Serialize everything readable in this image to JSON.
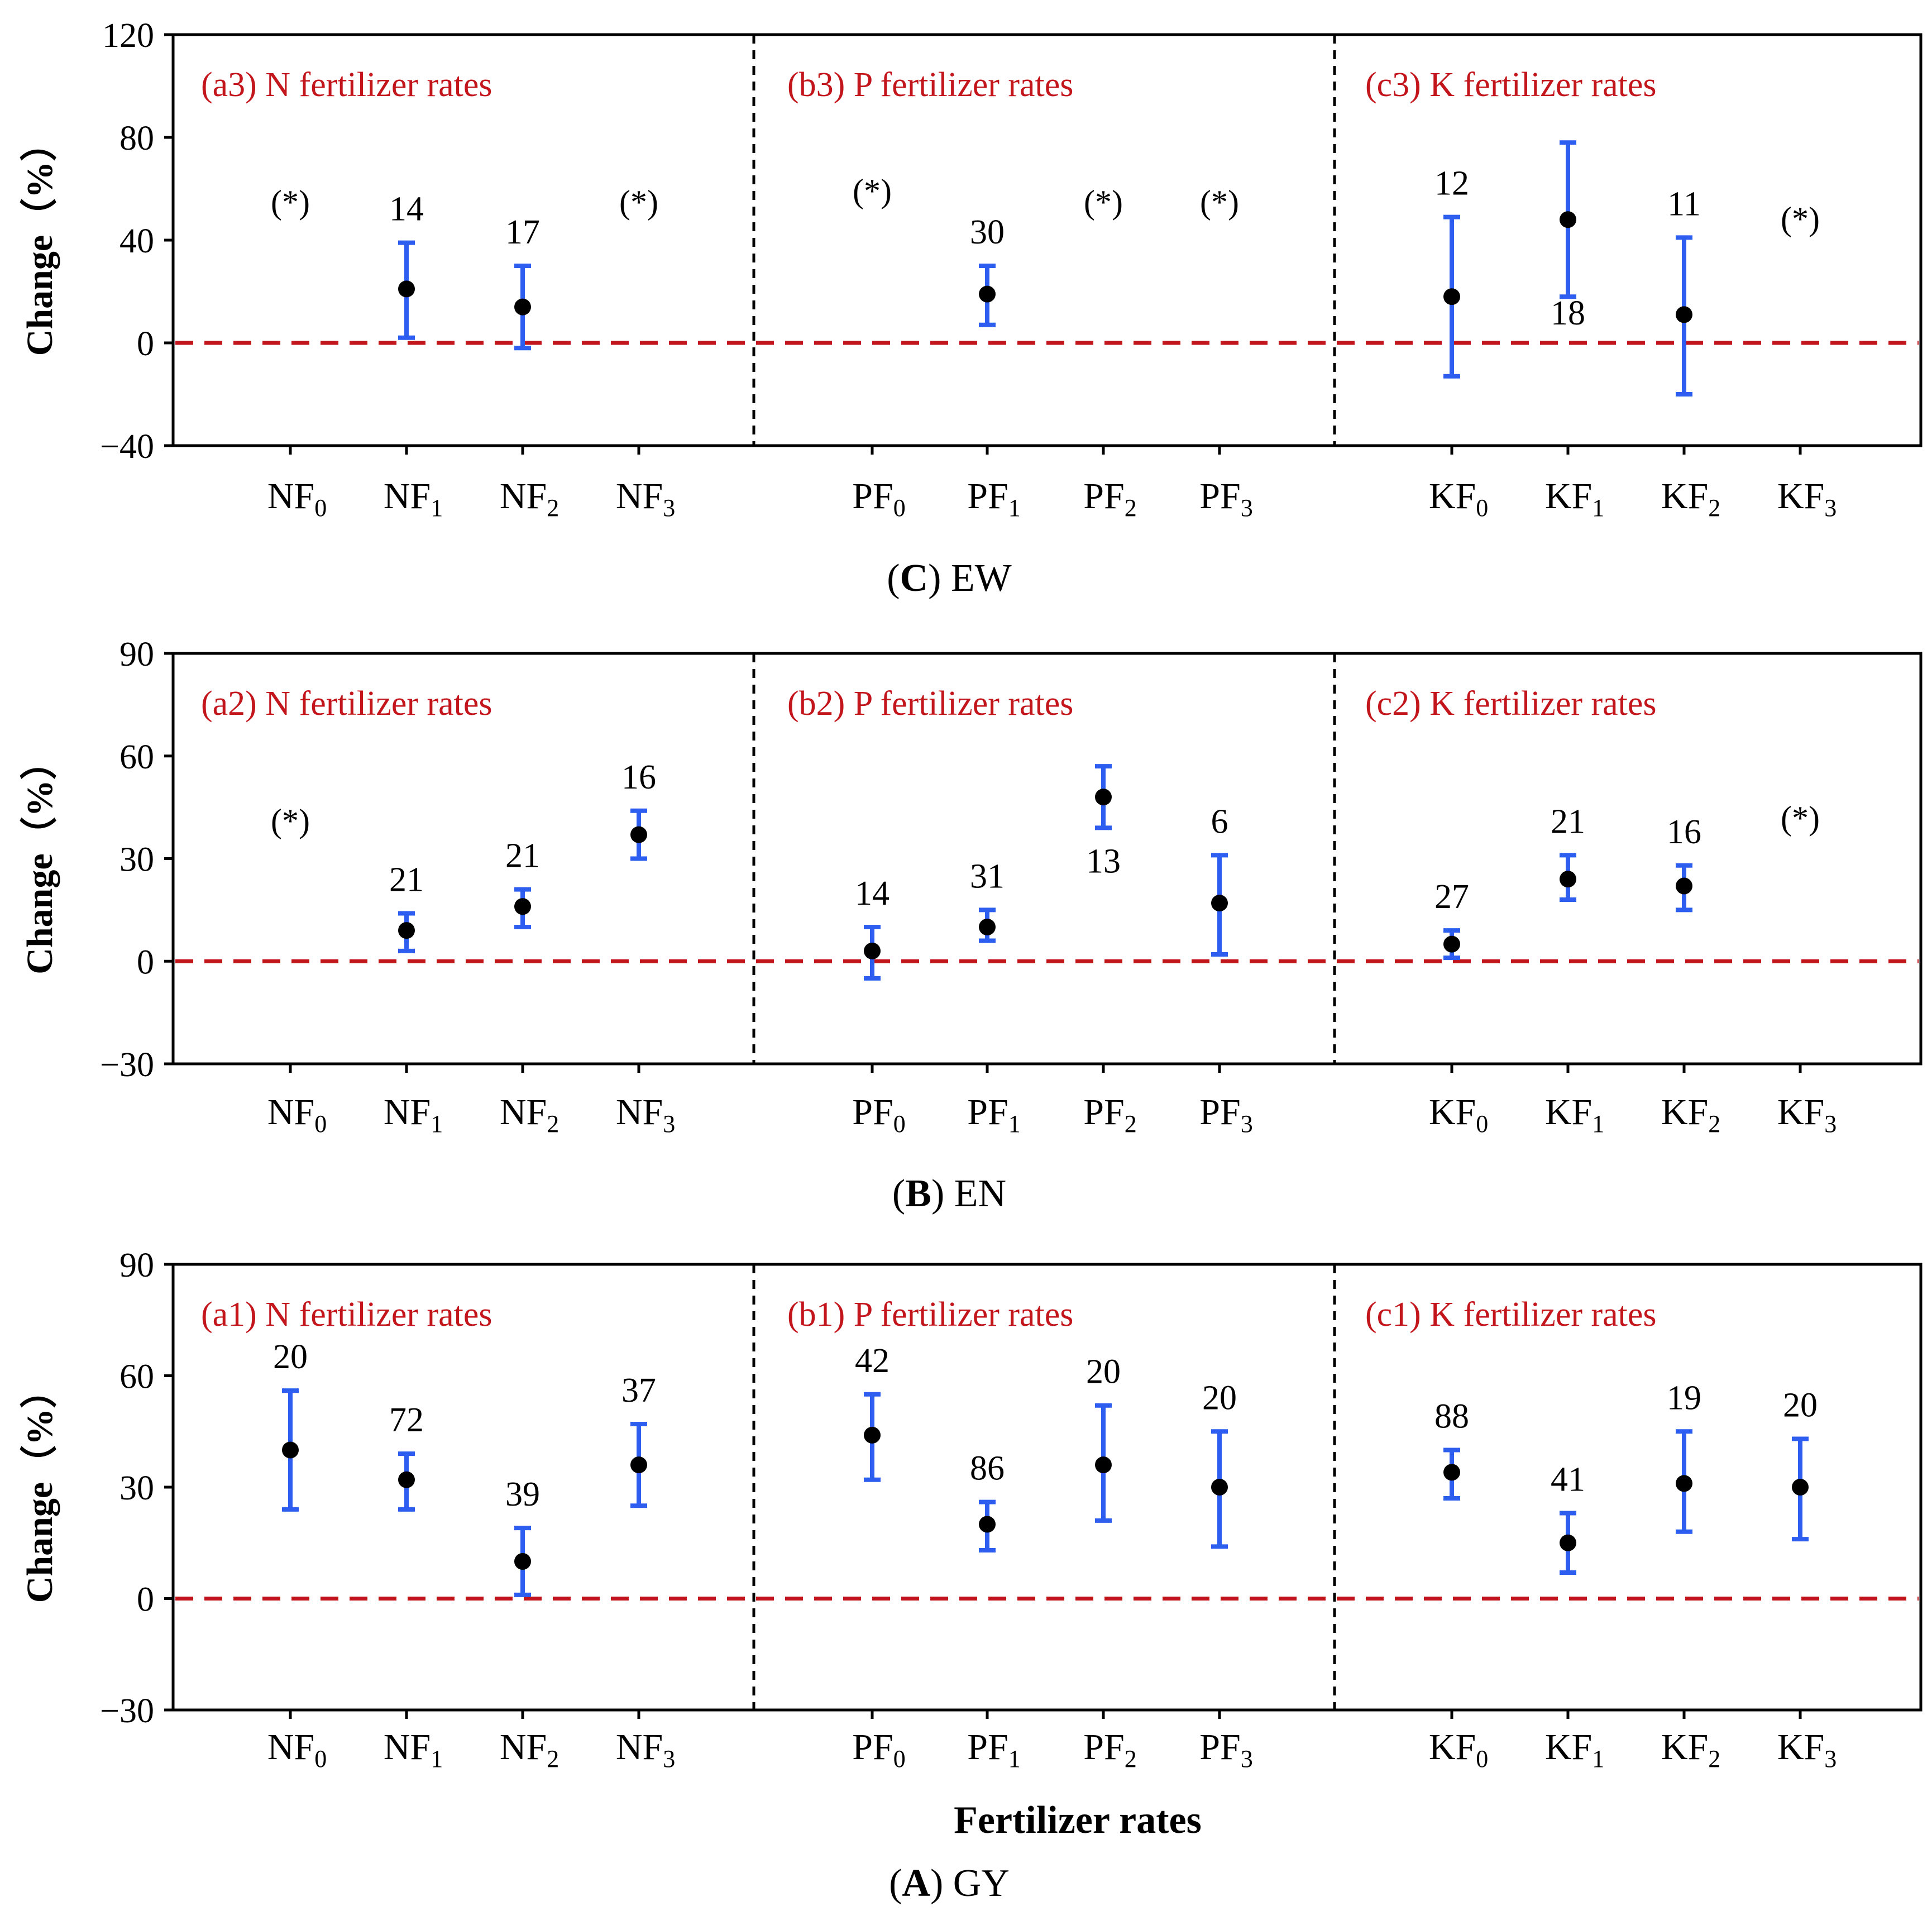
{
  "figure": {
    "y_axis_label": "Change（%）",
    "x_axis_label": "Fertilizer rates"
  },
  "colors": {
    "error_bar": "#2d5ef0",
    "zero_line": "#c3161c",
    "panel_title": "#c3161c",
    "point": "#000000",
    "divider": "#000000"
  },
  "chart_data": [
    {
      "type": "scatter",
      "id": "C",
      "caption_letter": "C",
      "caption_text": "EW",
      "ylim": [
        -40,
        120
      ],
      "yticks": [
        "120",
        "80",
        "40",
        "0",
        "−40"
      ],
      "ytick_values": [
        120,
        80,
        40,
        0,
        -40
      ],
      "groups": [
        {
          "title": "(a3) N fertilizer rates",
          "points": [
            {
              "base": "NF",
              "sub": "0",
              "mean": null,
              "low": null,
              "high": null,
              "n": "(*)"
            },
            {
              "base": "NF",
              "sub": "1",
              "mean": 21,
              "low": 2,
              "high": 39,
              "n": "14"
            },
            {
              "base": "NF",
              "sub": "2",
              "mean": 14,
              "low": -2,
              "high": 30,
              "n": "17"
            },
            {
              "base": "NF",
              "sub": "3",
              "mean": null,
              "low": null,
              "high": null,
              "n": "(*)"
            }
          ]
        },
        {
          "title": "(b3) P fertilizer rates",
          "points": [
            {
              "base": "PF",
              "sub": "0",
              "mean": null,
              "low": null,
              "high": null,
              "n": "(*)"
            },
            {
              "base": "PF",
              "sub": "1",
              "mean": 19,
              "low": 7,
              "high": 30,
              "n": "30"
            },
            {
              "base": "PF",
              "sub": "2",
              "mean": null,
              "low": null,
              "high": null,
              "n": "(*)"
            },
            {
              "base": "PF",
              "sub": "3",
              "mean": null,
              "low": null,
              "high": null,
              "n": "(*)"
            }
          ]
        },
        {
          "title": "(c3) K fertilizer rates",
          "points": [
            {
              "base": "KF",
              "sub": "0",
              "mean": 18,
              "low": -13,
              "high": 49,
              "n": "12"
            },
            {
              "base": "KF",
              "sub": "1",
              "mean": 48,
              "low": 18,
              "high": 78,
              "n": "18"
            },
            {
              "base": "KF",
              "sub": "2",
              "mean": 11,
              "low": -20,
              "high": 41,
              "n": "11"
            },
            {
              "base": "KF",
              "sub": "3",
              "mean": null,
              "low": null,
              "high": null,
              "n": "(*)"
            }
          ]
        }
      ]
    },
    {
      "type": "scatter",
      "id": "B",
      "caption_letter": "B",
      "caption_text": "EN",
      "ylim": [
        -30,
        90
      ],
      "yticks": [
        "90",
        "60",
        "30",
        "0",
        "−30"
      ],
      "ytick_values": [
        90,
        60,
        30,
        0,
        -30
      ],
      "groups": [
        {
          "title": "(a2) N fertilizer rates",
          "points": [
            {
              "base": "NF",
              "sub": "0",
              "mean": null,
              "low": null,
              "high": null,
              "n": "(*)"
            },
            {
              "base": "NF",
              "sub": "1",
              "mean": 9,
              "low": 3,
              "high": 14,
              "n": "21"
            },
            {
              "base": "NF",
              "sub": "2",
              "mean": 16,
              "low": 10,
              "high": 21,
              "n": "21"
            },
            {
              "base": "NF",
              "sub": "3",
              "mean": 37,
              "low": 30,
              "high": 44,
              "n": "16"
            }
          ]
        },
        {
          "title": "(b2) P fertilizer rates",
          "points": [
            {
              "base": "PF",
              "sub": "0",
              "mean": 3,
              "low": -5,
              "high": 10,
              "n": "14"
            },
            {
              "base": "PF",
              "sub": "1",
              "mean": 10,
              "low": 6,
              "high": 15,
              "n": "31"
            },
            {
              "base": "PF",
              "sub": "2",
              "mean": 48,
              "low": 39,
              "high": 57,
              "n": "13"
            },
            {
              "base": "PF",
              "sub": "3",
              "mean": 17,
              "low": 2,
              "high": 31,
              "n": "6"
            }
          ]
        },
        {
          "title": "(c2) K fertilizer rates",
          "points": [
            {
              "base": "KF",
              "sub": "0",
              "mean": 5,
              "low": 1,
              "high": 9,
              "n": "27"
            },
            {
              "base": "KF",
              "sub": "1",
              "mean": 24,
              "low": 18,
              "high": 31,
              "n": "21"
            },
            {
              "base": "KF",
              "sub": "2",
              "mean": 22,
              "low": 15,
              "high": 28,
              "n": "16"
            },
            {
              "base": "KF",
              "sub": "3",
              "mean": null,
              "low": null,
              "high": null,
              "n": "(*)"
            }
          ]
        }
      ]
    },
    {
      "type": "scatter",
      "id": "A",
      "caption_letter": "A",
      "caption_text": "GY",
      "ylim": [
        -30,
        90
      ],
      "yticks": [
        "90",
        "60",
        "30",
        "0",
        "−30"
      ],
      "ytick_values": [
        90,
        60,
        30,
        0,
        -30
      ],
      "groups": [
        {
          "title": "(a1) N fertilizer rates",
          "points": [
            {
              "base": "NF",
              "sub": "0",
              "mean": 40,
              "low": 24,
              "high": 56,
              "n": "20"
            },
            {
              "base": "NF",
              "sub": "1",
              "mean": 32,
              "low": 24,
              "high": 39,
              "n": "72"
            },
            {
              "base": "NF",
              "sub": "2",
              "mean": 10,
              "low": 1,
              "high": 19,
              "n": "39"
            },
            {
              "base": "NF",
              "sub": "3",
              "mean": 36,
              "low": 25,
              "high": 47,
              "n": "37"
            }
          ]
        },
        {
          "title": "(b1) P fertilizer rates",
          "points": [
            {
              "base": "PF",
              "sub": "0",
              "mean": 44,
              "low": 32,
              "high": 55,
              "n": "42"
            },
            {
              "base": "PF",
              "sub": "1",
              "mean": 20,
              "low": 13,
              "high": 26,
              "n": "86"
            },
            {
              "base": "PF",
              "sub": "2",
              "mean": 36,
              "low": 21,
              "high": 52,
              "n": "20"
            },
            {
              "base": "PF",
              "sub": "3",
              "mean": 30,
              "low": 14,
              "high": 45,
              "n": "20"
            }
          ]
        },
        {
          "title": "(c1) K fertilizer rates",
          "points": [
            {
              "base": "KF",
              "sub": "0",
              "mean": 34,
              "low": 27,
              "high": 40,
              "n": "88"
            },
            {
              "base": "KF",
              "sub": "1",
              "mean": 15,
              "low": 7,
              "high": 23,
              "n": "41"
            },
            {
              "base": "KF",
              "sub": "2",
              "mean": 31,
              "low": 18,
              "high": 45,
              "n": "19"
            },
            {
              "base": "KF",
              "sub": "3",
              "mean": 30,
              "low": 16,
              "high": 43,
              "n": "20"
            }
          ]
        }
      ]
    }
  ]
}
